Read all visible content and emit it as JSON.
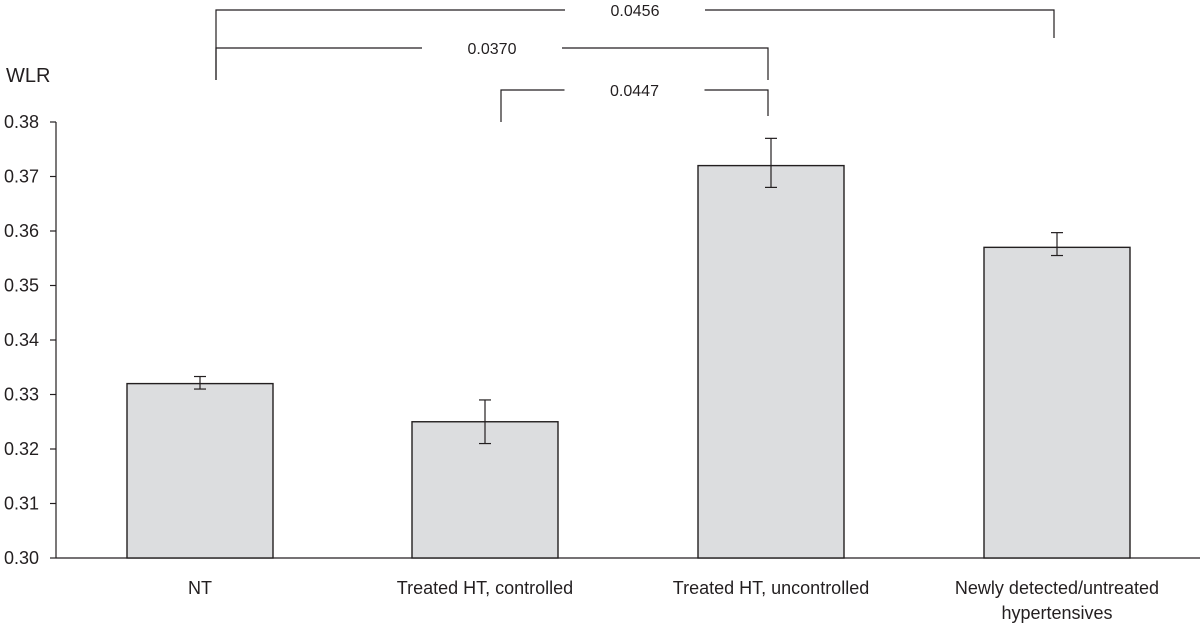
{
  "chart_data": {
    "type": "bar",
    "ylabel": "WLR",
    "ylim": [
      0.3,
      0.38
    ],
    "yticks": [
      "0.30",
      "0.31",
      "0.32",
      "0.33",
      "0.34",
      "0.35",
      "0.36",
      "0.37",
      "0.38"
    ],
    "categories": [
      [
        "NT"
      ],
      [
        "Treated HT, controlled"
      ],
      [
        "Treated HT, uncontrolled"
      ],
      [
        "Newly detected/untreated",
        "hypertensives"
      ]
    ],
    "values": [
      0.332,
      0.325,
      0.372,
      0.357
    ],
    "error_low": [
      0.331,
      0.321,
      0.368,
      0.3555
    ],
    "error_high": [
      0.3333,
      0.329,
      0.377,
      0.3597
    ],
    "bar_color": "#dcdddf",
    "significance": [
      {
        "from": 0,
        "to": 3,
        "label": "0.0456"
      },
      {
        "from": 0,
        "to": 2,
        "label": "0.0370"
      },
      {
        "from": 1,
        "to": 2,
        "label": "0.0447"
      }
    ],
    "grid": false,
    "legend": "none"
  }
}
